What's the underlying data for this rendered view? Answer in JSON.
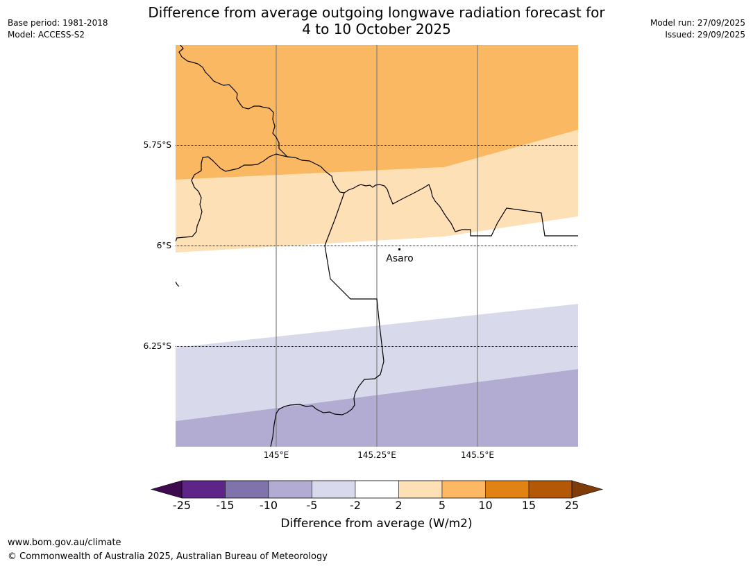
{
  "header": {
    "title_line1": "Difference from average outgoing longwave radiation forecast for",
    "title_line2": "4 to 10 October 2025",
    "base_period": "Base period: 1981-2018",
    "model": "Model: ACCESS-S2",
    "model_run": "Model run: 27/09/2025",
    "issued": "Issued: 29/09/2025"
  },
  "map": {
    "latitude_labels": [
      "5.75°S",
      "6°S",
      "6.25°S"
    ],
    "longitude_labels": [
      "145°E",
      "145.25°E",
      "145.5°E"
    ],
    "place_label": "Asaro",
    "colors": {
      "pos_5_10": "#fbb862",
      "pos_2_5": "#fde0b6",
      "neutral": "#ffffff",
      "neg_2_5": "#d8d9ea",
      "neg_5_10": "#b2abd2",
      "border": "#000000",
      "meridian": "#808080"
    }
  },
  "colorbar": {
    "title": "Difference from average (W/m2)",
    "tick_labels": [
      "-25",
      "-15",
      "-10",
      "-5",
      "-2",
      "2",
      "5",
      "10",
      "15",
      "25"
    ],
    "colors": [
      "#3f0b4f",
      "#5c2587",
      "#8073ac",
      "#b2abd2",
      "#d8daeb",
      "#ffffff",
      "#fee0b6",
      "#fdb863",
      "#e08214",
      "#b35806",
      "#7f3b08"
    ]
  },
  "footer": {
    "url": "www.bom.gov.au/climate",
    "copyright": "© Commonwealth of Australia 2025, Australian Bureau of Meteorology"
  }
}
